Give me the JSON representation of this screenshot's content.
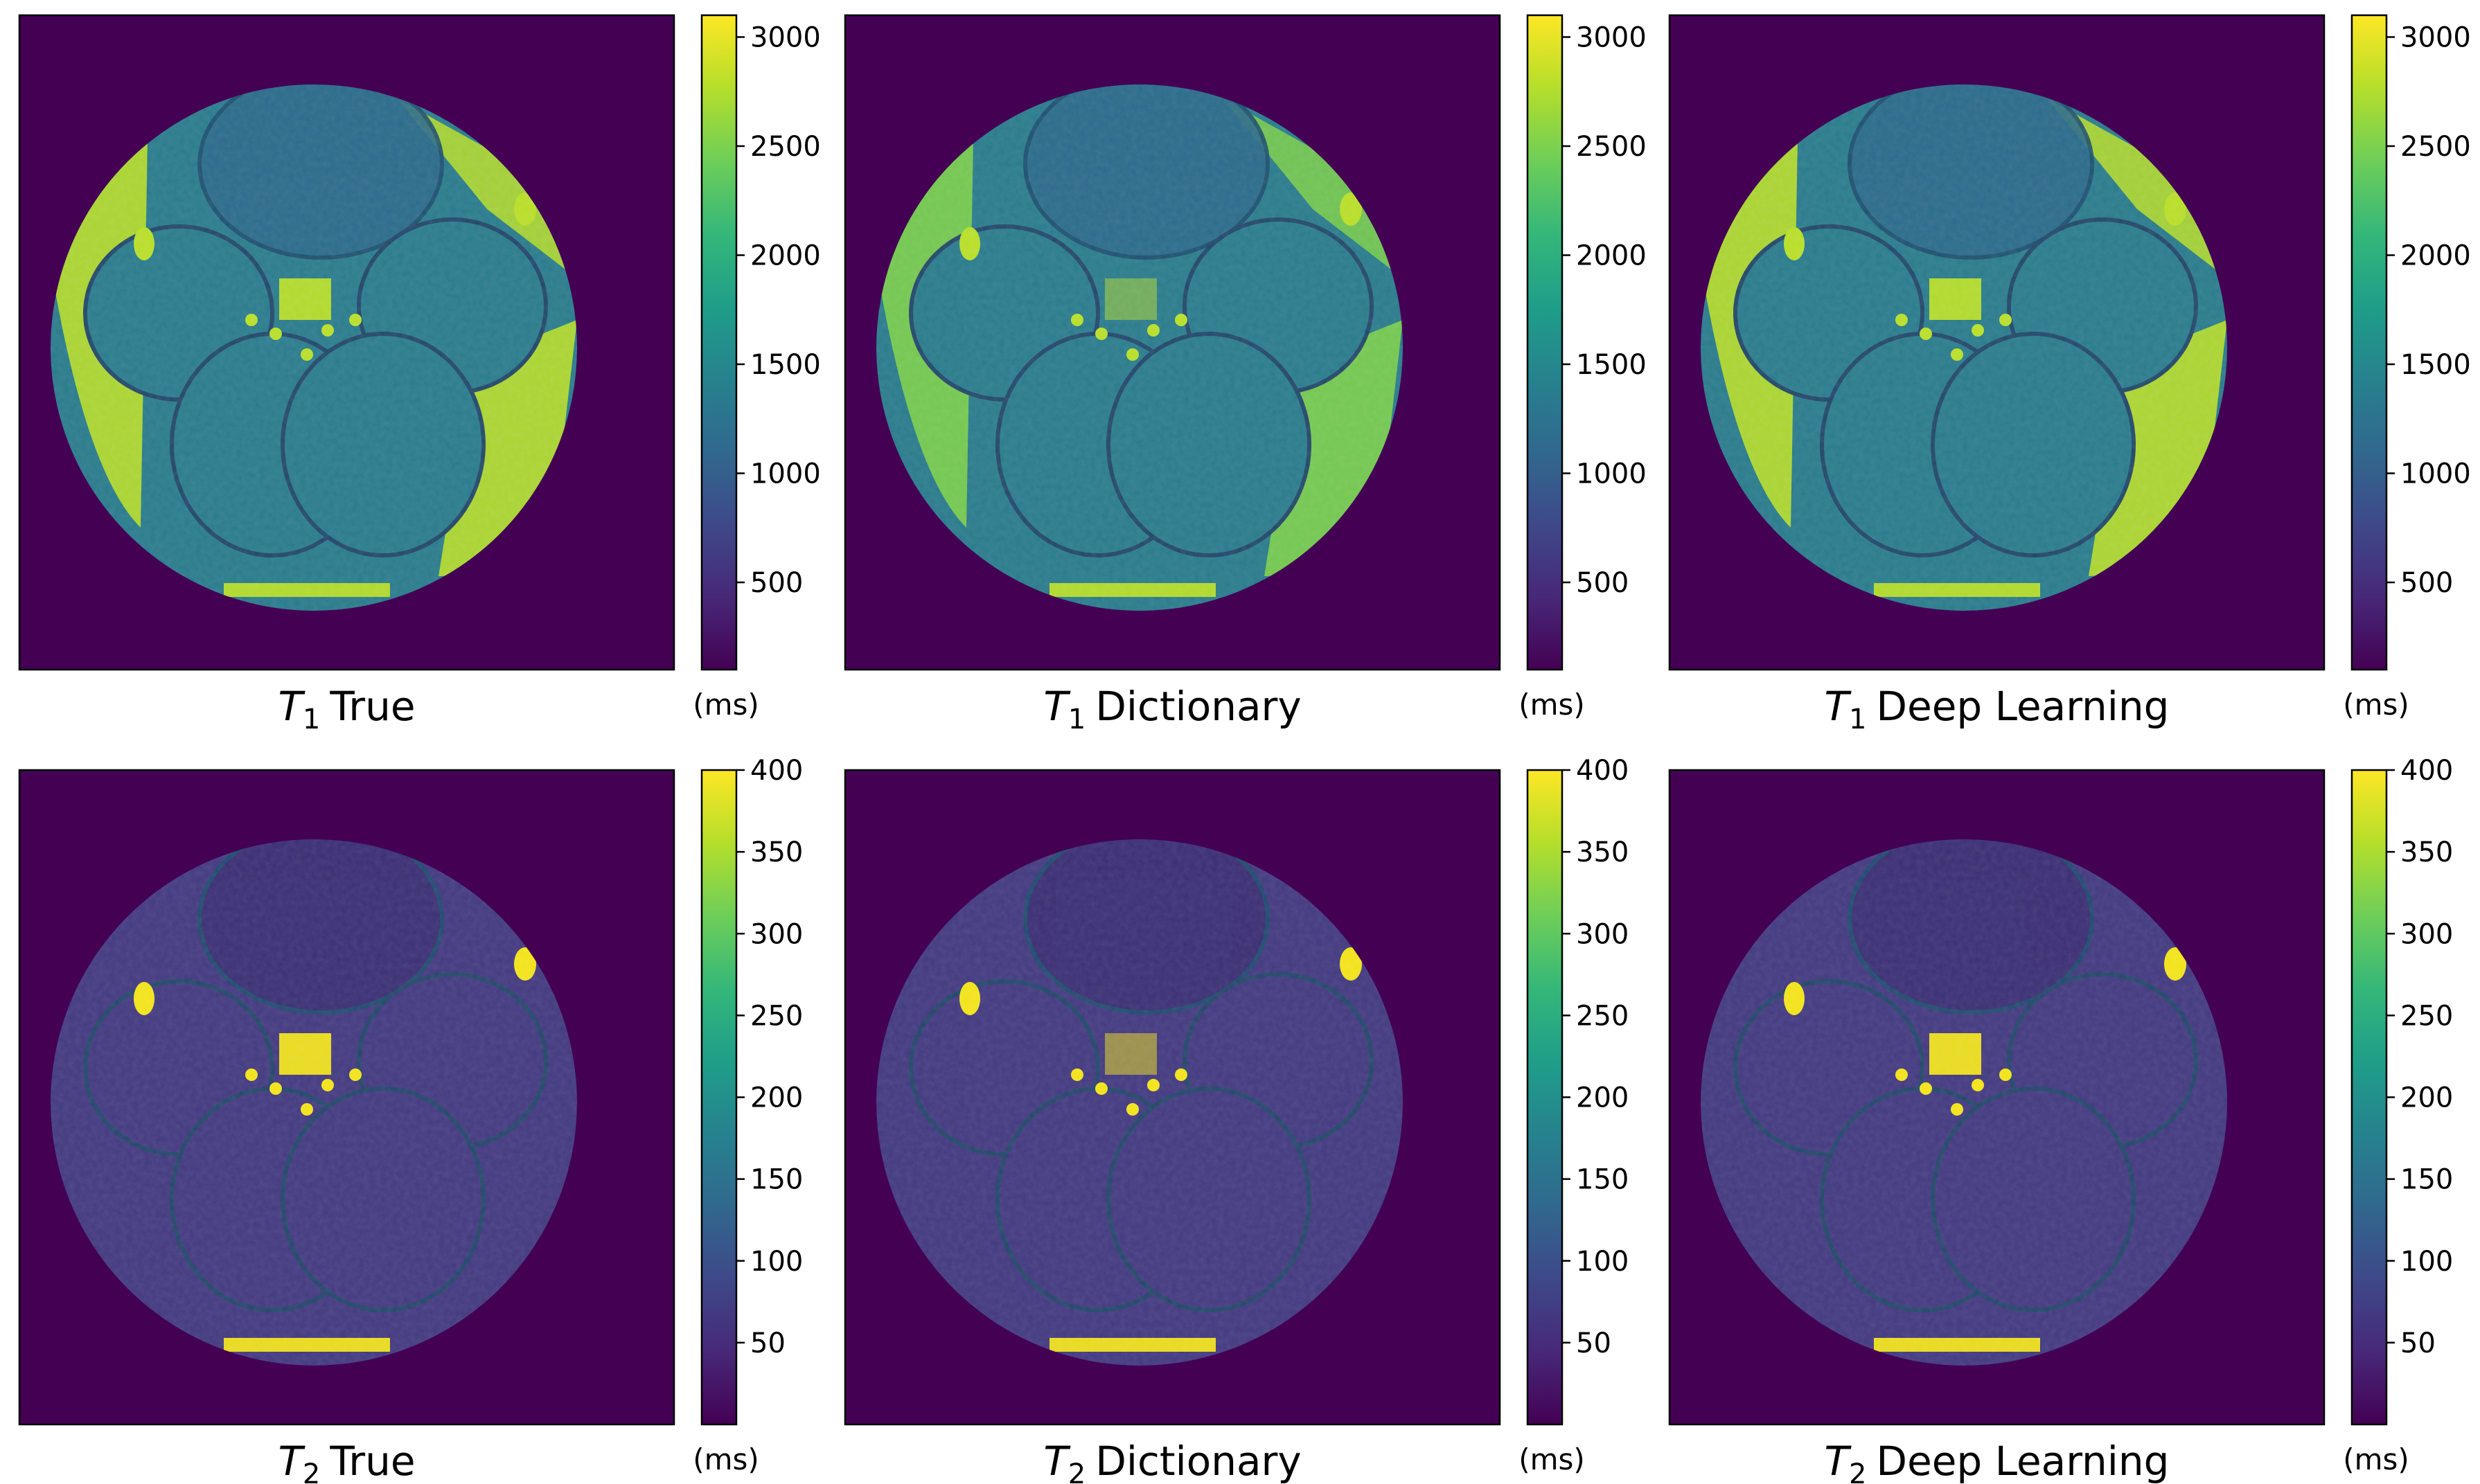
{
  "colors": {
    "background": "#440154",
    "viridis": [
      "#440154",
      "#482878",
      "#3e4989",
      "#31688e",
      "#26828e",
      "#1f9e89",
      "#35b779",
      "#6ece58",
      "#b5de2b",
      "#fde725"
    ],
    "tissue_t1": "#2a7b8c",
    "tissue_t2": "#433a80",
    "bright_t1": "#b8de29",
    "bright_t2": "#f2e31a"
  },
  "panels": [
    {
      "id": "t1-true",
      "symbol": "T",
      "subscript": "1",
      "method": "True",
      "unit": "(ms)",
      "scale": "t1",
      "variant": "true"
    },
    {
      "id": "t1-dictionary",
      "symbol": "T",
      "subscript": "1",
      "method": "Dictionary",
      "unit": "(ms)",
      "scale": "t1",
      "variant": "dictionary"
    },
    {
      "id": "t1-deep-learning",
      "symbol": "T",
      "subscript": "1",
      "method": "Deep Learning",
      "unit": "(ms)",
      "scale": "t1",
      "variant": "deep"
    },
    {
      "id": "t2-true",
      "symbol": "T",
      "subscript": "2",
      "method": "True",
      "unit": "(ms)",
      "scale": "t2",
      "variant": "true"
    },
    {
      "id": "t2-dictionary",
      "symbol": "T",
      "subscript": "2",
      "method": "Dictionary",
      "unit": "(ms)",
      "scale": "t2",
      "variant": "dictionary"
    },
    {
      "id": "t2-deep-learning",
      "symbol": "T",
      "subscript": "2",
      "method": "Deep Learning",
      "unit": "(ms)",
      "scale": "t2",
      "variant": "deep"
    }
  ],
  "colorbars": {
    "t1": {
      "min": 100,
      "max": 3100,
      "ticks": [
        "500",
        "1000",
        "1500",
        "2000",
        "2500",
        "3000"
      ],
      "tick_values": [
        500,
        1000,
        1500,
        2000,
        2500,
        3000
      ]
    },
    "t2": {
      "min": 0,
      "max": 400,
      "ticks": [
        "50",
        "100",
        "150",
        "200",
        "250",
        "300",
        "350",
        "400"
      ],
      "tick_values": [
        50,
        100,
        150,
        200,
        250,
        300,
        350,
        400
      ]
    }
  }
}
